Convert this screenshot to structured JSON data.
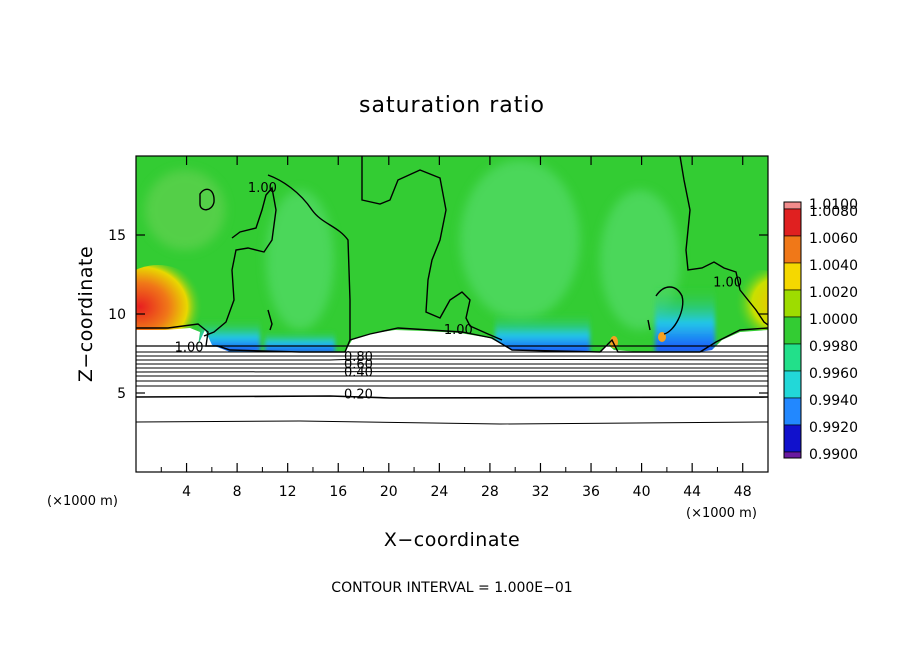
{
  "chart_data": {
    "type": "heatmap",
    "title": "saturation ratio",
    "xlabel": "X−coordinate",
    "ylabel": "Z−coordinate",
    "x_unit_left": "(×1000 m)",
    "x_unit_right": "(×1000 m)",
    "footer": "CONTOUR INTERVAL = 1.000E−01",
    "xlim": [
      0,
      50
    ],
    "ylim": [
      0,
      20
    ],
    "x_ticks": [
      4,
      8,
      12,
      16,
      20,
      24,
      28,
      32,
      36,
      40,
      44,
      48
    ],
    "y_ticks": [
      5,
      10,
      15
    ],
    "colorbar": {
      "levels": [
        "1.0100",
        "1.0080",
        "1.0060",
        "1.0040",
        "1.0020",
        "1.0000",
        "0.9980",
        "0.9960",
        "0.9940",
        "0.9920",
        "0.9900"
      ],
      "colors": [
        "#f28c8c",
        "#e02020",
        "#f07818",
        "#f5d800",
        "#9edc00",
        "#33cc33",
        "#22e08a",
        "#22d8d8",
        "#2288ff",
        "#1111cc",
        "#6a1aa0"
      ]
    },
    "background_value": 1.0,
    "regions": [
      {
        "name": "supersaturated-left",
        "value": 1.007,
        "x": [
          0,
          6
        ],
        "z": [
          9,
          12.5
        ]
      },
      {
        "name": "subsaturated-band",
        "value": 0.994,
        "x": [
          6,
          16
        ],
        "z": [
          7.6,
          9.2
        ]
      },
      {
        "name": "subsaturated-band",
        "value": 0.994,
        "x": [
          28,
          36
        ],
        "z": [
          7.6,
          9.2
        ]
      },
      {
        "name": "subsaturated-band",
        "value": 0.994,
        "x": [
          42,
          46
        ],
        "z": [
          7.6,
          10.5
        ]
      },
      {
        "name": "supersaturated-right",
        "value": 1.003,
        "x": [
          47,
          50
        ],
        "z": [
          9,
          12
        ]
      }
    ],
    "contour_labels": [
      {
        "text": "1.00",
        "x": 10,
        "z": 17.8
      },
      {
        "text": "1.00",
        "x": 46.8,
        "z": 11.8
      },
      {
        "text": "1.00",
        "x": 25.5,
        "z": 8.8
      },
      {
        "text": "1.00",
        "x": 4.2,
        "z": 7.7
      },
      {
        "text": "0.80",
        "x": 17.6,
        "z": 7.1
      },
      {
        "text": "0.60",
        "x": 17.6,
        "z": 6.6
      },
      {
        "text": "0.40",
        "x": 17.6,
        "z": 6.1
      },
      {
        "text": "0.20",
        "x": 17.6,
        "z": 4.7
      }
    ],
    "contour_levels_below": [
      0.2,
      0.3,
      0.4,
      0.5,
      0.6,
      0.7,
      0.8,
      0.9
    ],
    "grid": false,
    "legend": "colorbar-right"
  }
}
